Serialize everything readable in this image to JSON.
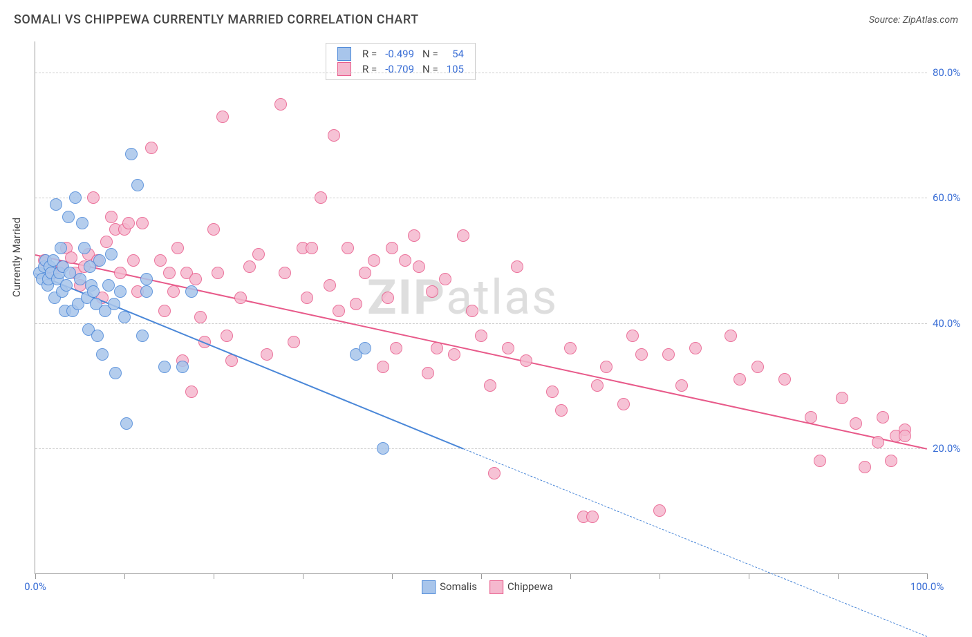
{
  "title": "SOMALI VS CHIPPEWA CURRENTLY MARRIED CORRELATION CHART",
  "source": "Source: ZipAtlas.com",
  "yaxis_label": "Currently Married",
  "watermark": {
    "prefix": "ZIP",
    "suffix": "atlas"
  },
  "chart": {
    "type": "scatter",
    "xlim": [
      0,
      100
    ],
    "ylim": [
      0,
      85
    ],
    "y_ticks": [
      20,
      40,
      60,
      80
    ],
    "y_tick_labels": [
      "20.0%",
      "40.0%",
      "60.0%",
      "80.0%"
    ],
    "x_ticks": [
      0,
      10,
      20,
      30,
      40,
      50,
      60,
      70,
      80,
      90,
      100
    ],
    "x_tick_labels_visible": {
      "0": "0.0%",
      "100": "100.0%"
    },
    "background_color": "#ffffff",
    "grid_color": "#cccccc",
    "axis_color": "#999999",
    "tick_label_color": "#3b6fd6",
    "marker_radius": 9,
    "marker_border_width": 1.5,
    "marker_fill_opacity": 0.3,
    "series": [
      {
        "name": "Somalis",
        "legend_label": "Somalis",
        "color": "#4a87d8",
        "fill": "#a8c5eb",
        "R": "-0.499",
        "N": "54",
        "trend": {
          "x1": 0,
          "y1": 48,
          "x2_solid": 48,
          "y2_solid": 20,
          "x2_dash": 100,
          "y2_dash": -10,
          "solid_width": 2.5,
          "dash_pattern": "7,5",
          "dash_width": 1.5
        },
        "points": [
          [
            0.5,
            48
          ],
          [
            0.8,
            47
          ],
          [
            1.0,
            49
          ],
          [
            1.2,
            50
          ],
          [
            1.4,
            46
          ],
          [
            1.5,
            47
          ],
          [
            1.6,
            49
          ],
          [
            1.8,
            48
          ],
          [
            2.0,
            50
          ],
          [
            2.2,
            44
          ],
          [
            2.3,
            59
          ],
          [
            2.5,
            47
          ],
          [
            2.7,
            48
          ],
          [
            2.9,
            52
          ],
          [
            3.0,
            45
          ],
          [
            3.1,
            49
          ],
          [
            3.3,
            42
          ],
          [
            3.5,
            46
          ],
          [
            3.7,
            57
          ],
          [
            3.9,
            48
          ],
          [
            4.2,
            42
          ],
          [
            4.5,
            60
          ],
          [
            4.8,
            43
          ],
          [
            5.0,
            47
          ],
          [
            5.3,
            56
          ],
          [
            5.5,
            52
          ],
          [
            5.8,
            44
          ],
          [
            6.0,
            39
          ],
          [
            6.1,
            49
          ],
          [
            6.3,
            46
          ],
          [
            6.5,
            45
          ],
          [
            6.8,
            43
          ],
          [
            7.0,
            38
          ],
          [
            7.2,
            50
          ],
          [
            7.5,
            35
          ],
          [
            7.8,
            42
          ],
          [
            8.2,
            46
          ],
          [
            8.5,
            51
          ],
          [
            8.8,
            43
          ],
          [
            9.0,
            32
          ],
          [
            9.5,
            45
          ],
          [
            10.0,
            41
          ],
          [
            10.2,
            24
          ],
          [
            10.8,
            67
          ],
          [
            11.5,
            62
          ],
          [
            12.0,
            38
          ],
          [
            12.5,
            47
          ],
          [
            12.5,
            45
          ],
          [
            14.5,
            33
          ],
          [
            16.5,
            33
          ],
          [
            17.5,
            45
          ],
          [
            36.0,
            35
          ],
          [
            37.0,
            36
          ],
          [
            39.0,
            20
          ]
        ]
      },
      {
        "name": "Chippewa",
        "legend_label": "Chippewa",
        "color": "#e85a8a",
        "fill": "#f5b8ce",
        "R": "-0.709",
        "N": "105",
        "trend": {
          "x1": 0,
          "y1": 51,
          "x2_solid": 100,
          "y2_solid": 20,
          "solid_width": 2.5,
          "dash_pattern": null
        },
        "points": [
          [
            1.0,
            50
          ],
          [
            2.0,
            48
          ],
          [
            3.0,
            49
          ],
          [
            3.5,
            52
          ],
          [
            4.0,
            50.5
          ],
          [
            4.5,
            48
          ],
          [
            5.0,
            46
          ],
          [
            5.5,
            49
          ],
          [
            6.0,
            51
          ],
          [
            6.5,
            60
          ],
          [
            7.0,
            50
          ],
          [
            7.5,
            44
          ],
          [
            8.0,
            53
          ],
          [
            8.5,
            57
          ],
          [
            9.0,
            55
          ],
          [
            9.5,
            48
          ],
          [
            10.0,
            55
          ],
          [
            10.5,
            56
          ],
          [
            11.0,
            50
          ],
          [
            11.5,
            45
          ],
          [
            12.0,
            56
          ],
          [
            13.0,
            68
          ],
          [
            14.0,
            50
          ],
          [
            14.5,
            42
          ],
          [
            15.0,
            48
          ],
          [
            15.5,
            45
          ],
          [
            16.0,
            52
          ],
          [
            16.5,
            34
          ],
          [
            17.0,
            48
          ],
          [
            17.5,
            29
          ],
          [
            18.0,
            47
          ],
          [
            18.5,
            41
          ],
          [
            19.0,
            37
          ],
          [
            20.0,
            55
          ],
          [
            20.5,
            48
          ],
          [
            21.0,
            73
          ],
          [
            21.5,
            38
          ],
          [
            22.0,
            34
          ],
          [
            23.0,
            44
          ],
          [
            24.0,
            49
          ],
          [
            25.0,
            51
          ],
          [
            26.0,
            35
          ],
          [
            27.5,
            75
          ],
          [
            28.0,
            48
          ],
          [
            29.0,
            37
          ],
          [
            30.0,
            52
          ],
          [
            30.5,
            44
          ],
          [
            31.0,
            52
          ],
          [
            32.0,
            60
          ],
          [
            33.0,
            46
          ],
          [
            33.5,
            70
          ],
          [
            34.0,
            42
          ],
          [
            35.0,
            52
          ],
          [
            36.0,
            43
          ],
          [
            37.0,
            48
          ],
          [
            38.0,
            50
          ],
          [
            39.0,
            33
          ],
          [
            39.5,
            44
          ],
          [
            40.0,
            52
          ],
          [
            40.5,
            36
          ],
          [
            41.5,
            50
          ],
          [
            42.5,
            54
          ],
          [
            43.0,
            49
          ],
          [
            44.0,
            32
          ],
          [
            44.5,
            45
          ],
          [
            45.0,
            36
          ],
          [
            46.0,
            47
          ],
          [
            47.0,
            35
          ],
          [
            48.0,
            54
          ],
          [
            49.0,
            42
          ],
          [
            50.0,
            38
          ],
          [
            51.0,
            30
          ],
          [
            51.5,
            16
          ],
          [
            53.0,
            36
          ],
          [
            54.0,
            49
          ],
          [
            55.0,
            34
          ],
          [
            58.0,
            29
          ],
          [
            59.0,
            26
          ],
          [
            60.0,
            36
          ],
          [
            61.5,
            9
          ],
          [
            62.5,
            9
          ],
          [
            63.0,
            30
          ],
          [
            64.0,
            33
          ],
          [
            66.0,
            27
          ],
          [
            67.0,
            38
          ],
          [
            68.0,
            35
          ],
          [
            70.0,
            10
          ],
          [
            71.0,
            35
          ],
          [
            72.5,
            30
          ],
          [
            74.0,
            36
          ],
          [
            78.0,
            38
          ],
          [
            79.0,
            31
          ],
          [
            81.0,
            33
          ],
          [
            84.0,
            31
          ],
          [
            87.0,
            25
          ],
          [
            88.0,
            18
          ],
          [
            90.5,
            28
          ],
          [
            92.0,
            24
          ],
          [
            93.0,
            17
          ],
          [
            94.5,
            21
          ],
          [
            95.0,
            25
          ],
          [
            96.0,
            18
          ],
          [
            96.5,
            22
          ],
          [
            97.5,
            23
          ],
          [
            97.5,
            22
          ]
        ]
      }
    ]
  }
}
